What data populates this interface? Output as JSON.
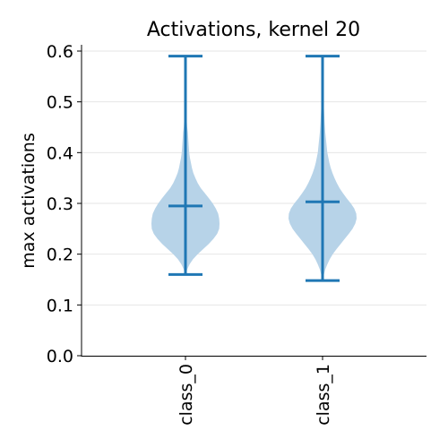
{
  "chart_data": {
    "type": "violin",
    "title": "Activations, kernel 20",
    "xlabel": "",
    "ylabel": "max activations",
    "ylim": [
      0,
      0.6
    ],
    "yticks": [
      0.0,
      0.1,
      0.2,
      0.3,
      0.4,
      0.5,
      0.6
    ],
    "ytick_labels": [
      "0.0",
      "0.1",
      "0.2",
      "0.3",
      "0.4",
      "0.5",
      "0.6"
    ],
    "grid": "horizontal",
    "categories": [
      "class_0",
      "class_1"
    ],
    "violins": [
      {
        "category": "class_0",
        "min": 0.16,
        "mean": 0.295,
        "max": 0.59,
        "density": [
          [
            0.16,
            0.02
          ],
          [
            0.17,
            0.05
          ],
          [
            0.18,
            0.12
          ],
          [
            0.19,
            0.22
          ],
          [
            0.2,
            0.36
          ],
          [
            0.21,
            0.52
          ],
          [
            0.22,
            0.68
          ],
          [
            0.23,
            0.82
          ],
          [
            0.24,
            0.93
          ],
          [
            0.25,
            0.99
          ],
          [
            0.26,
            1.0
          ],
          [
            0.27,
            0.99
          ],
          [
            0.28,
            0.96
          ],
          [
            0.29,
            0.89
          ],
          [
            0.3,
            0.8
          ],
          [
            0.31,
            0.69
          ],
          [
            0.32,
            0.57
          ],
          [
            0.33,
            0.45
          ],
          [
            0.34,
            0.36
          ],
          [
            0.35,
            0.29
          ],
          [
            0.36,
            0.23
          ],
          [
            0.37,
            0.19
          ],
          [
            0.38,
            0.16
          ],
          [
            0.39,
            0.13
          ],
          [
            0.4,
            0.11
          ],
          [
            0.41,
            0.1
          ],
          [
            0.42,
            0.09
          ],
          [
            0.43,
            0.08
          ],
          [
            0.44,
            0.07
          ],
          [
            0.45,
            0.05
          ],
          [
            0.46,
            0.04
          ],
          [
            0.47,
            0.03
          ],
          [
            0.48,
            0.025
          ],
          [
            0.5,
            0.02
          ],
          [
            0.52,
            0.015
          ],
          [
            0.55,
            0.01
          ],
          [
            0.59,
            0.008
          ]
        ]
      },
      {
        "category": "class_1",
        "min": 0.148,
        "mean": 0.303,
        "max": 0.59,
        "density": [
          [
            0.148,
            0.02
          ],
          [
            0.16,
            0.04
          ],
          [
            0.17,
            0.08
          ],
          [
            0.18,
            0.14
          ],
          [
            0.19,
            0.21
          ],
          [
            0.2,
            0.3
          ],
          [
            0.21,
            0.41
          ],
          [
            0.22,
            0.53
          ],
          [
            0.23,
            0.65
          ],
          [
            0.24,
            0.77
          ],
          [
            0.25,
            0.88
          ],
          [
            0.26,
            0.96
          ],
          [
            0.27,
            1.0
          ],
          [
            0.28,
            0.99
          ],
          [
            0.29,
            0.93
          ],
          [
            0.3,
            0.83
          ],
          [
            0.31,
            0.71
          ],
          [
            0.32,
            0.6
          ],
          [
            0.33,
            0.5
          ],
          [
            0.34,
            0.42
          ],
          [
            0.35,
            0.35
          ],
          [
            0.36,
            0.29
          ],
          [
            0.37,
            0.24
          ],
          [
            0.38,
            0.2
          ],
          [
            0.39,
            0.17
          ],
          [
            0.4,
            0.14
          ],
          [
            0.42,
            0.11
          ],
          [
            0.44,
            0.08
          ],
          [
            0.46,
            0.06
          ],
          [
            0.48,
            0.045
          ],
          [
            0.5,
            0.03
          ],
          [
            0.52,
            0.02
          ],
          [
            0.55,
            0.012
          ],
          [
            0.59,
            0.008
          ]
        ]
      }
    ],
    "colors": {
      "body": "#b7d3e8",
      "line": "#1f77b4",
      "axis": "#000000",
      "grid": "#e6e6e6"
    }
  }
}
